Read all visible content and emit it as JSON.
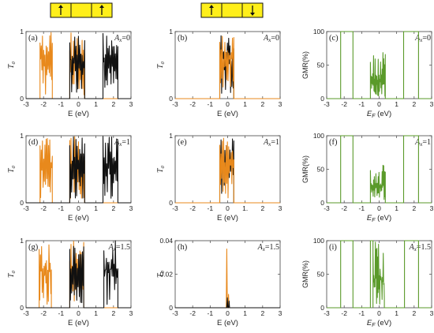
{
  "colors": {
    "orange": "#e8891c",
    "black": "#111111",
    "green": "#5a9a2a",
    "ybox": "#ffef1a",
    "frame": "#444444"
  },
  "header": {
    "left": {
      "arrows": [
        "up",
        "up"
      ]
    },
    "right": {
      "arrows": [
        "up",
        "down"
      ]
    }
  },
  "panels": [
    {
      "label": "(a)",
      "annotation": "A",
      "annotation_sub": "x",
      "annotation_val": "=0",
      "ylabel": "T",
      "ylabel_sub": "σ",
      "xlabel": "E (eV)"
    },
    {
      "label": "(b)",
      "annotation": "A",
      "annotation_sub": "x",
      "annotation_val": "=0",
      "ylabel": "T",
      "ylabel_sub": "σ",
      "xlabel": "E (eV)"
    },
    {
      "label": "(c)",
      "annotation": "A",
      "annotation_sub": "x",
      "annotation_val": "=0",
      "ylabel": "GMR(%)",
      "ylabel_sub": "",
      "xlabel": "E",
      "xlabel_sub": "F",
      "xlabel_tail": " (eV)"
    },
    {
      "label": "(d)",
      "annotation": "A",
      "annotation_sub": "x",
      "annotation_val": "=1",
      "ylabel": "T",
      "ylabel_sub": "σ",
      "xlabel": "E (eV)"
    },
    {
      "label": "(e)",
      "annotation": "A",
      "annotation_sub": "x",
      "annotation_val": "=1",
      "ylabel": "T",
      "ylabel_sub": "σ",
      "xlabel": "E (eV)"
    },
    {
      "label": "(f)",
      "annotation": "A",
      "annotation_sub": "x",
      "annotation_val": "=1",
      "ylabel": "GMR(%)",
      "ylabel_sub": "",
      "xlabel": "E",
      "xlabel_sub": "F",
      "xlabel_tail": " (eV)"
    },
    {
      "label": "(g)",
      "annotation": "A",
      "annotation_sub": "x",
      "annotation_val": "=1.5",
      "ylabel": "T",
      "ylabel_sub": "σ",
      "xlabel": "E (eV)"
    },
    {
      "label": "(h)",
      "annotation": "A",
      "annotation_sub": "x",
      "annotation_val": "=1.5",
      "ylabel": "T",
      "ylabel_sub": "σ",
      "xlabel": "E (eV)"
    },
    {
      "label": "(i)",
      "annotation": "A",
      "annotation_sub": "x",
      "annotation_val": "=1.5",
      "ylabel": "GMR(%)",
      "ylabel_sub": "",
      "xlabel": "E",
      "xlabel_sub": "F",
      "xlabel_tail": " (eV)"
    }
  ],
  "chart_data": [
    {
      "type": "line",
      "panel": "(a)",
      "xlim": [
        -3,
        3
      ],
      "ylim": [
        0,
        1
      ],
      "xticks": [
        "-3",
        "-2",
        "-1",
        "0",
        "1",
        "2",
        "3"
      ],
      "yticks": [
        "0",
        "1"
      ],
      "series": [
        {
          "color": "orange",
          "segments": [
            [
              -2.2,
              -1.5
            ],
            [
              -0.5,
              0.35
            ]
          ]
        },
        {
          "color": "black",
          "segments": [
            [
              -0.5,
              0.35
            ],
            [
              1.4,
              2.25
            ]
          ]
        }
      ]
    },
    {
      "type": "line",
      "panel": "(b)",
      "xlim": [
        -3,
        3
      ],
      "ylim": [
        0,
        1
      ],
      "xticks": [
        "-3",
        "-2",
        "-1",
        "0",
        "1",
        "2",
        "3"
      ],
      "yticks": [
        "0",
        "1"
      ],
      "series": [
        {
          "color": "black",
          "segments": [
            [
              -0.45,
              0.35
            ]
          ]
        },
        {
          "color": "orange",
          "segments": [
            [
              -0.45,
              0.35
            ]
          ]
        }
      ]
    },
    {
      "type": "line",
      "panel": "(c)",
      "xlim": [
        -3,
        3
      ],
      "ylim": [
        0,
        100
      ],
      "xticks": [
        "-3",
        "-2",
        "-1",
        "0",
        "1",
        "2",
        "3"
      ],
      "yticks": [
        "0",
        "50",
        "100"
      ],
      "series": [
        {
          "color": "green",
          "plateaus": [
            [
              -2.2,
              -1.5
            ],
            [
              1.4,
              2.25
            ]
          ],
          "noise": [
            -0.5,
            0.35
          ],
          "noise_max": 70
        }
      ]
    },
    {
      "type": "line",
      "panel": "(d)",
      "xlim": [
        -3,
        3
      ],
      "ylim": [
        0,
        1
      ],
      "xticks": [
        "-3",
        "-2",
        "-1",
        "0",
        "1",
        "2",
        "3"
      ],
      "yticks": [
        "0",
        "1"
      ],
      "series": [
        {
          "color": "orange",
          "segments": [
            [
              -2.2,
              -1.5
            ],
            [
              -0.5,
              0.35
            ]
          ]
        },
        {
          "color": "black",
          "segments": [
            [
              -0.5,
              0.35
            ],
            [
              1.4,
              2.25
            ]
          ]
        }
      ]
    },
    {
      "type": "line",
      "panel": "(e)",
      "xlim": [
        -3,
        3
      ],
      "ylim": [
        0,
        1
      ],
      "xticks": [
        "-3",
        "-2",
        "-1",
        "0",
        "1.",
        "2",
        "3"
      ],
      "yticks": [
        "0",
        "1"
      ],
      "series": [
        {
          "color": "black",
          "segments": [
            [
              -0.45,
              0.35
            ]
          ]
        },
        {
          "color": "orange",
          "segments": [
            [
              -0.45,
              0.35
            ]
          ]
        }
      ]
    },
    {
      "type": "line",
      "panel": "(f)",
      "xlim": [
        -3,
        3
      ],
      "ylim": [
        0,
        100
      ],
      "xticks": [
        "-3",
        "-2",
        "-1",
        "0",
        "1",
        "2",
        "3"
      ],
      "yticks": [
        "0",
        "50",
        "100"
      ],
      "series": [
        {
          "color": "green",
          "plateaus": [
            [
              -2.2,
              -1.5
            ],
            [
              1.4,
              2.25
            ]
          ],
          "noise": [
            -0.5,
            0.35
          ],
          "noise_max": 60
        }
      ]
    },
    {
      "type": "line",
      "panel": "(g)",
      "xlim": [
        -3,
        3
      ],
      "ylim": [
        0,
        1
      ],
      "xticks": [
        "-3",
        "-2",
        "-1",
        "0",
        "1",
        "2",
        "3"
      ],
      "yticks": [
        "0",
        "1"
      ],
      "series": [
        {
          "color": "orange",
          "segments": [
            [
              -2.25,
              -1.55
            ],
            [
              -0.5,
              0.3
            ]
          ]
        },
        {
          "color": "black",
          "segments": [
            [
              -0.5,
              0.3
            ],
            [
              1.45,
              2.25
            ]
          ]
        }
      ]
    },
    {
      "type": "line",
      "panel": "(h)",
      "xlim": [
        -3,
        3
      ],
      "ylim": [
        0,
        0.04
      ],
      "xticks": [
        "-3",
        "-2",
        "-1",
        "0",
        "1",
        "2",
        "3"
      ],
      "yticks": [
        "0",
        "0.02",
        "0.04"
      ],
      "series": [
        {
          "color": "orange",
          "spikes": [
            [
              -0.05,
              0.035
            ],
            [
              0.05,
              0.008
            ]
          ]
        },
        {
          "color": "black",
          "spikes": [
            [
              -0.02,
              0.006
            ],
            [
              0.08,
              0.004
            ]
          ]
        }
      ]
    },
    {
      "type": "line",
      "panel": "(i)",
      "xlim": [
        -3,
        3
      ],
      "ylim": [
        0,
        100
      ],
      "xticks": [
        "-3",
        "-2",
        "-1",
        "0",
        "1",
        "2",
        "3"
      ],
      "yticks": [
        "0",
        "50",
        "100"
      ],
      "series": [
        {
          "color": "green",
          "plateaus": [
            [
              -2.2,
              -1.5
            ],
            [
              -0.5,
              -0.35
            ],
            [
              1.45,
              2.25
            ]
          ],
          "noise": [
            -0.35,
            0.3
          ],
          "noise_max": 100
        }
      ]
    }
  ]
}
